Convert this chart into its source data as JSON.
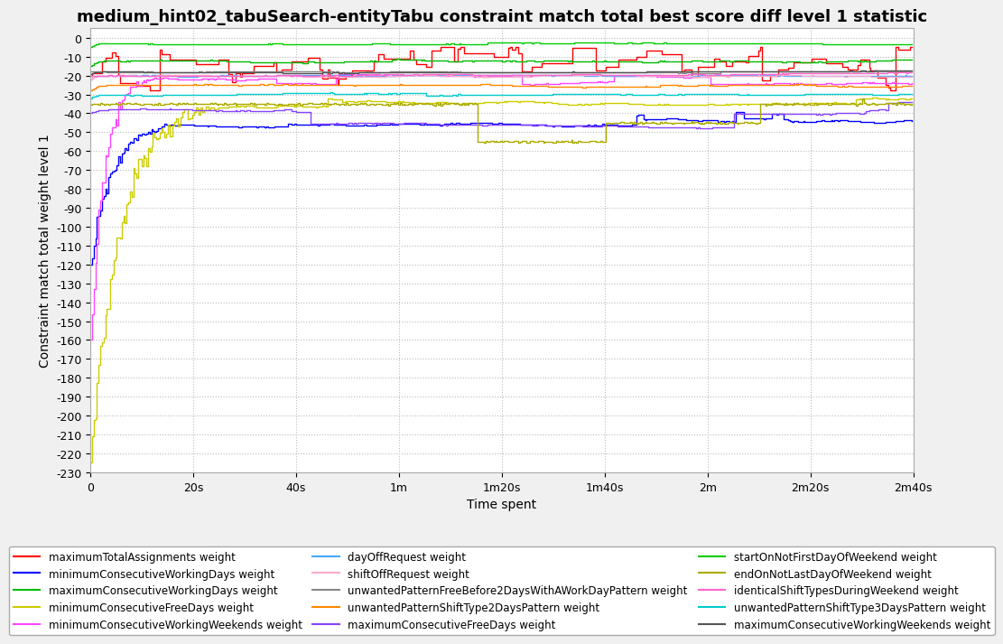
{
  "title": "medium_hint02_tabuSearch-entityTabu constraint match total best score diff level 1 statistic",
  "xlabel": "Time spent",
  "ylabel": "Constraint match total weight level 1",
  "ylim": [
    -230,
    5
  ],
  "xlim": [
    0,
    160
  ],
  "yticks": [
    0,
    -10,
    -20,
    -30,
    -40,
    -50,
    -60,
    -70,
    -80,
    -90,
    -100,
    -110,
    -120,
    -130,
    -140,
    -150,
    -160,
    -170,
    -180,
    -190,
    -200,
    -210,
    -220,
    -230
  ],
  "xtick_positions": [
    0,
    20,
    40,
    60,
    80,
    100,
    120,
    140,
    160
  ],
  "xtick_labels": [
    "0",
    "20s",
    "40s",
    "1m",
    "1m20s",
    "1m40s",
    "2m",
    "2m20s",
    "2m40s"
  ],
  "background_color": "#f0f0f0",
  "plot_background": "#ffffff",
  "grid_color": "#bbbbbb",
  "title_fontsize": 13,
  "legend_ncol": 3,
  "legend": [
    {
      "label": "maximumTotalAssignments weight",
      "color": "#ff0000"
    },
    {
      "label": "minimumConsecutiveWorkingDays weight",
      "color": "#0000ff"
    },
    {
      "label": "maximumConsecutiveWorkingDays weight",
      "color": "#00bb00"
    },
    {
      "label": "minimumConsecutiveFreeDays weight",
      "color": "#cccc00"
    },
    {
      "label": "minimumConsecutiveWorkingWeekends weight",
      "color": "#ff44ff"
    },
    {
      "label": "dayOffRequest weight",
      "color": "#44aaff"
    },
    {
      "label": "shiftOffRequest weight",
      "color": "#ffaacc"
    },
    {
      "label": "unwantedPatternFreeBefore2DaysWithAWorkDayPattern weight",
      "color": "#888888"
    },
    {
      "label": "unwantedPatternShiftType2DaysPattern weight",
      "color": "#ff8800"
    },
    {
      "label": "maximumConsecutiveFreeDays weight",
      "color": "#8844ff"
    },
    {
      "label": "startOnNotFirstDayOfWeekend weight",
      "color": "#00cc00"
    },
    {
      "label": "endOnNotLastDayOfWeekend weight",
      "color": "#aaaa00"
    },
    {
      "label": "identicalShiftTypesDuringWeekend weight",
      "color": "#ff66cc"
    },
    {
      "label": "unwantedPatternShiftType3DaysPattern weight",
      "color": "#00cccc"
    },
    {
      "label": "maximumConsecutiveWorkingWeekends weight",
      "color": "#555555"
    }
  ]
}
